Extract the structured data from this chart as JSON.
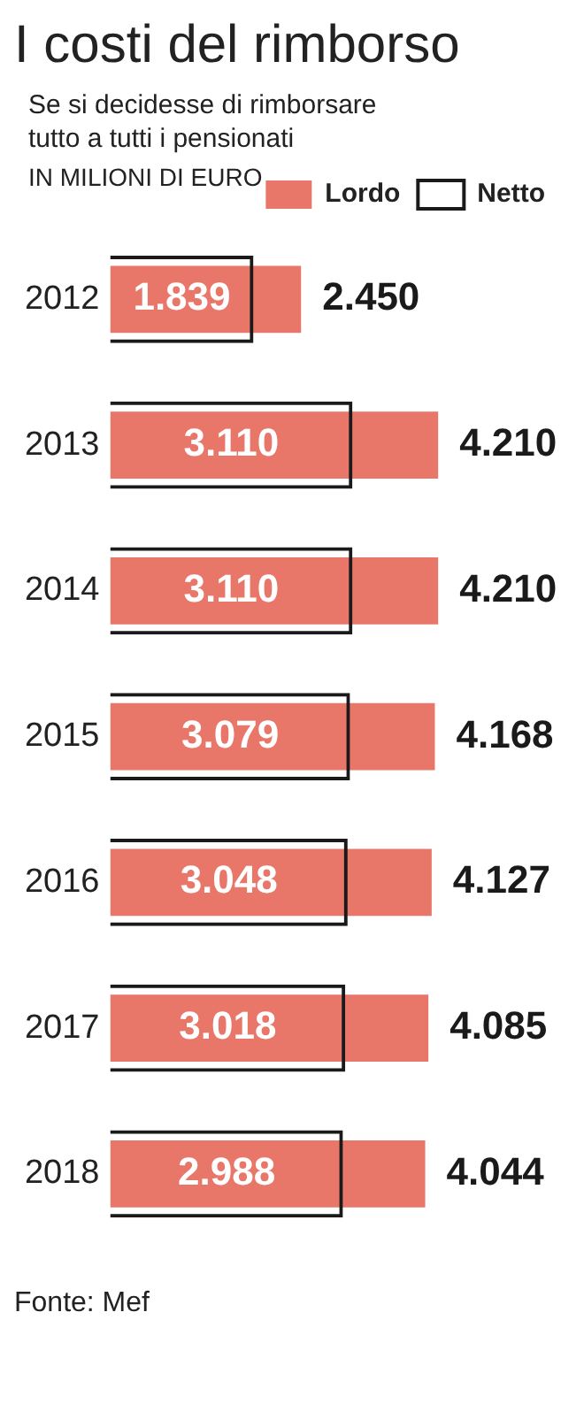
{
  "chart_data": {
    "type": "bar",
    "title": "I costi del rimborso",
    "subtitle": "Se si decidesse di rimborsare tutto a tutti i pensionati",
    "annotations": [
      "IN MILIONI DI EURO",
      "Fonte: Mef"
    ],
    "categories": [
      "2012",
      "2013",
      "2014",
      "2015",
      "2016",
      "2017",
      "2018"
    ],
    "orientation": "horizontal",
    "legend": "top right",
    "grid": false,
    "series": [
      {
        "name": "Lordo",
        "color": "#e8776a",
        "values": [
          2450,
          4210,
          4210,
          4168,
          4127,
          4085,
          4044
        ],
        "value_labels": [
          "2.450",
          "4.210",
          "4.210",
          "4.168",
          "4.127",
          "4.085",
          "4.044"
        ]
      },
      {
        "name": "Netto",
        "color": "#1a1a1a",
        "values": [
          1839,
          3110,
          3110,
          3079,
          3048,
          3018,
          2988
        ],
        "value_labels": [
          "1.839",
          "3.110",
          "3.110",
          "3.079",
          "3.048",
          "3.018",
          "2.988"
        ]
      }
    ]
  }
}
